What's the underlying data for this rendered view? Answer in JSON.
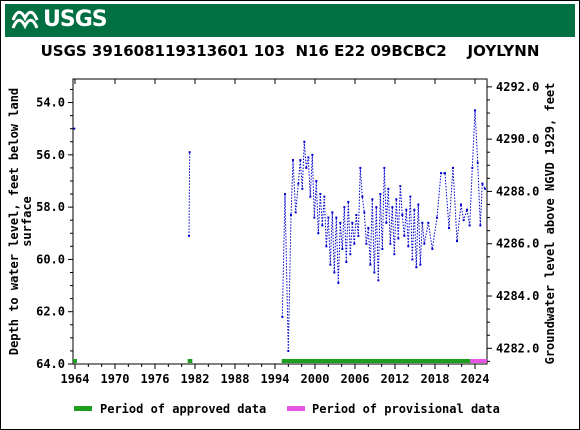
{
  "header": {
    "logo_text": "USGS",
    "logo_icon": "usgs-wave-icon",
    "banner_color": "#006f41"
  },
  "chart_data": {
    "type": "scatter",
    "title": "USGS 391608119313601 103  N16 E22 09BCBC2    JOYLYNN",
    "ylabel_left": "Depth to water level, feet below land surface",
    "ylabel_left_lines": [
      "Depth to water level, feet below land",
      "surface"
    ],
    "ylabel_right": "Groundwater level above NGVD 1929, feet",
    "x_ticks": [
      1964,
      1970,
      1976,
      1982,
      1988,
      1994,
      2000,
      2006,
      2012,
      2018,
      2024
    ],
    "x_tick_labels": [
      "1964",
      "1970",
      "1976",
      "1982",
      "1988",
      "1994",
      "2000",
      "2006",
      "2012",
      "2018",
      "2024"
    ],
    "xlim": [
      1963.7,
      2025.8
    ],
    "y_ticks": [
      54,
      56,
      58,
      60,
      62,
      64
    ],
    "y_tick_labels": [
      "54.0",
      "56.0",
      "58.0",
      "60.0",
      "62.0",
      "64.0"
    ],
    "ylim": [
      64,
      53.1
    ],
    "y2_ticks": [
      4282,
      4284,
      4286,
      4288,
      4290,
      4292
    ],
    "y2_tick_labels": [
      "4282.0",
      "4284.0",
      "4286.0",
      "4288.0",
      "4290.0",
      "4292.0"
    ],
    "y2lim": [
      4281.4,
      4292.3
    ],
    "series_color": "#0000cc",
    "points": [
      [
        1963.9,
        55.0
      ],
      [
        1981.1,
        59.1
      ],
      [
        1981.2,
        55.9
      ],
      [
        1995.1,
        62.2
      ],
      [
        1995.5,
        57.5
      ],
      [
        1996.0,
        63.5
      ],
      [
        1996.4,
        58.3
      ],
      [
        1996.7,
        56.2
      ],
      [
        1997.1,
        58.2
      ],
      [
        1997.5,
        57.1
      ],
      [
        1997.8,
        56.2
      ],
      [
        1998.1,
        57.3
      ],
      [
        1998.4,
        55.5
      ],
      [
        1998.7,
        56.5
      ],
      [
        1999.0,
        56.1
      ],
      [
        1999.3,
        57.6
      ],
      [
        1999.6,
        56.0
      ],
      [
        1999.9,
        58.4
      ],
      [
        2000.2,
        57.0
      ],
      [
        2000.5,
        59.0
      ],
      [
        2000.8,
        57.5
      ],
      [
        2001.1,
        58.7
      ],
      [
        2001.4,
        57.6
      ],
      [
        2001.7,
        59.5
      ],
      [
        2002.0,
        58.4
      ],
      [
        2002.3,
        60.2
      ],
      [
        2002.6,
        58.2
      ],
      [
        2002.9,
        60.5
      ],
      [
        2003.2,
        58.4
      ],
      [
        2003.5,
        60.9
      ],
      [
        2003.8,
        58.6
      ],
      [
        2004.1,
        59.6
      ],
      [
        2004.4,
        58.0
      ],
      [
        2004.7,
        60.1
      ],
      [
        2005.0,
        57.8
      ],
      [
        2005.3,
        59.8
      ],
      [
        2005.6,
        58.6
      ],
      [
        2005.9,
        59.4
      ],
      [
        2006.2,
        58.3
      ],
      [
        2006.5,
        59.1
      ],
      [
        2006.8,
        56.5
      ],
      [
        2007.1,
        57.6
      ],
      [
        2007.4,
        58.2
      ],
      [
        2007.7,
        59.4
      ],
      [
        2008.0,
        58.8
      ],
      [
        2008.3,
        60.2
      ],
      [
        2008.6,
        57.7
      ],
      [
        2008.9,
        60.5
      ],
      [
        2009.2,
        58.0
      ],
      [
        2009.5,
        60.8
      ],
      [
        2009.8,
        57.5
      ],
      [
        2010.1,
        59.6
      ],
      [
        2010.4,
        56.5
      ],
      [
        2010.7,
        58.6
      ],
      [
        2011.0,
        57.3
      ],
      [
        2011.3,
        59.4
      ],
      [
        2011.6,
        58.0
      ],
      [
        2011.9,
        59.8
      ],
      [
        2012.2,
        57.7
      ],
      [
        2012.5,
        59.2
      ],
      [
        2012.8,
        57.2
      ],
      [
        2013.1,
        58.3
      ],
      [
        2013.4,
        59.1
      ],
      [
        2013.7,
        58.1
      ],
      [
        2014.0,
        59.5
      ],
      [
        2014.3,
        57.6
      ],
      [
        2014.6,
        60.0
      ],
      [
        2014.9,
        58.1
      ],
      [
        2015.2,
        60.3
      ],
      [
        2015.5,
        57.9
      ],
      [
        2015.8,
        60.2
      ],
      [
        2016.1,
        58.6
      ],
      [
        2016.4,
        59.4
      ],
      [
        2017.0,
        58.6
      ],
      [
        2017.6,
        59.6
      ],
      [
        2018.3,
        58.4
      ],
      [
        2018.9,
        56.7
      ],
      [
        2019.5,
        56.7
      ],
      [
        2020.1,
        58.8
      ],
      [
        2020.7,
        56.5
      ],
      [
        2021.3,
        59.3
      ],
      [
        2021.9,
        57.9
      ],
      [
        2022.3,
        58.5
      ],
      [
        2022.8,
        58.1
      ],
      [
        2023.2,
        58.7
      ],
      [
        2023.6,
        56.5
      ],
      [
        2024.0,
        54.3
      ],
      [
        2024.4,
        56.3
      ],
      [
        2024.8,
        58.7
      ],
      [
        2025.1,
        57.1
      ],
      [
        2025.5,
        57.3
      ]
    ],
    "bars": [
      {
        "from": 1963.7,
        "to": 1964.3,
        "kind": "approved"
      },
      {
        "from": 1980.9,
        "to": 1981.6,
        "kind": "approved"
      },
      {
        "from": 1995.0,
        "to": 2023.3,
        "kind": "approved"
      },
      {
        "from": 2023.3,
        "to": 2025.8,
        "kind": "provisional"
      }
    ],
    "legend": [
      {
        "label": "Period of approved data",
        "color": "#1e9e1e"
      },
      {
        "label": "Period of provisional data",
        "color": "#e455e4"
      }
    ]
  }
}
